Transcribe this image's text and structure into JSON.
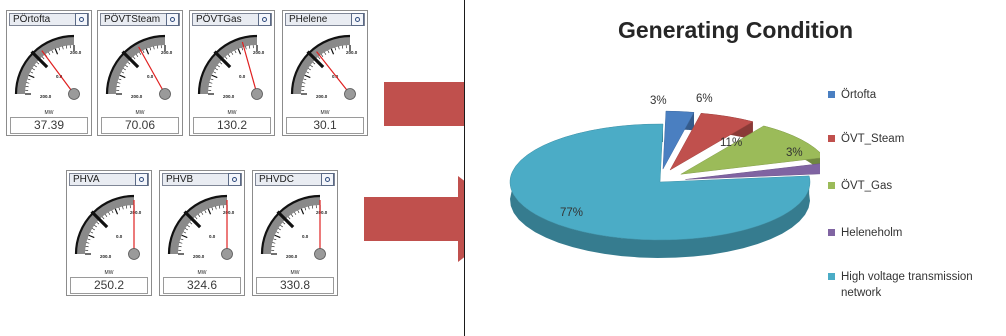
{
  "gauges": [
    {
      "name": "PÖrtofta",
      "unit": "MW",
      "value": "37.39",
      "scale_min": "200.0",
      "scale_mid": "0.0",
      "scale_max": "200.0",
      "reading": 37.39
    },
    {
      "name": "PÖVTSteam",
      "unit": "MW",
      "value": "70.06",
      "scale_min": "200.0",
      "scale_mid": "0.0",
      "scale_max": "200.0",
      "reading": 70.06
    },
    {
      "name": "PÖVTGas",
      "unit": "MW",
      "value": "130.2",
      "scale_min": "200.0",
      "scale_mid": "0.0",
      "scale_max": "200.0",
      "reading": 130.2
    },
    {
      "name": "PHelene",
      "unit": "MW",
      "value": "30.1",
      "scale_min": "200.0",
      "scale_mid": "0.0",
      "scale_max": "200.0",
      "reading": 30.1
    },
    {
      "name": "PHVA",
      "unit": "MW",
      "value": "250.2",
      "scale_min": "200.0",
      "scale_mid": "0.0",
      "scale_max": "200.0",
      "reading": 250.2
    },
    {
      "name": "PHVB",
      "unit": "MW",
      "value": "324.6",
      "scale_min": "200.0",
      "scale_mid": "0.0",
      "scale_max": "200.0",
      "reading": 324.6
    },
    {
      "name": "PHVDC",
      "unit": "MW",
      "value": "330.8",
      "scale_min": "200.0",
      "scale_mid": "0.0",
      "scale_max": "200.0",
      "reading": 330.8
    }
  ],
  "chart_data": {
    "type": "pie",
    "title": "Generating Condition",
    "categories": [
      "Örtofta",
      "ÖVT_Steam",
      "ÖVT_Gas",
      "Heleneholm",
      "High voltage transmission network"
    ],
    "values": [
      3,
      6,
      11,
      3,
      77
    ],
    "value_labels": [
      "3%",
      "6%",
      "11%",
      "3%",
      "77%"
    ],
    "colors": [
      "#4a7fc1",
      "#c0504d",
      "#9bbb59",
      "#8064a2",
      "#4bacc6"
    ],
    "legend": "right"
  },
  "colors": {
    "arrow": "#c0504d",
    "needle": "#e02020"
  }
}
